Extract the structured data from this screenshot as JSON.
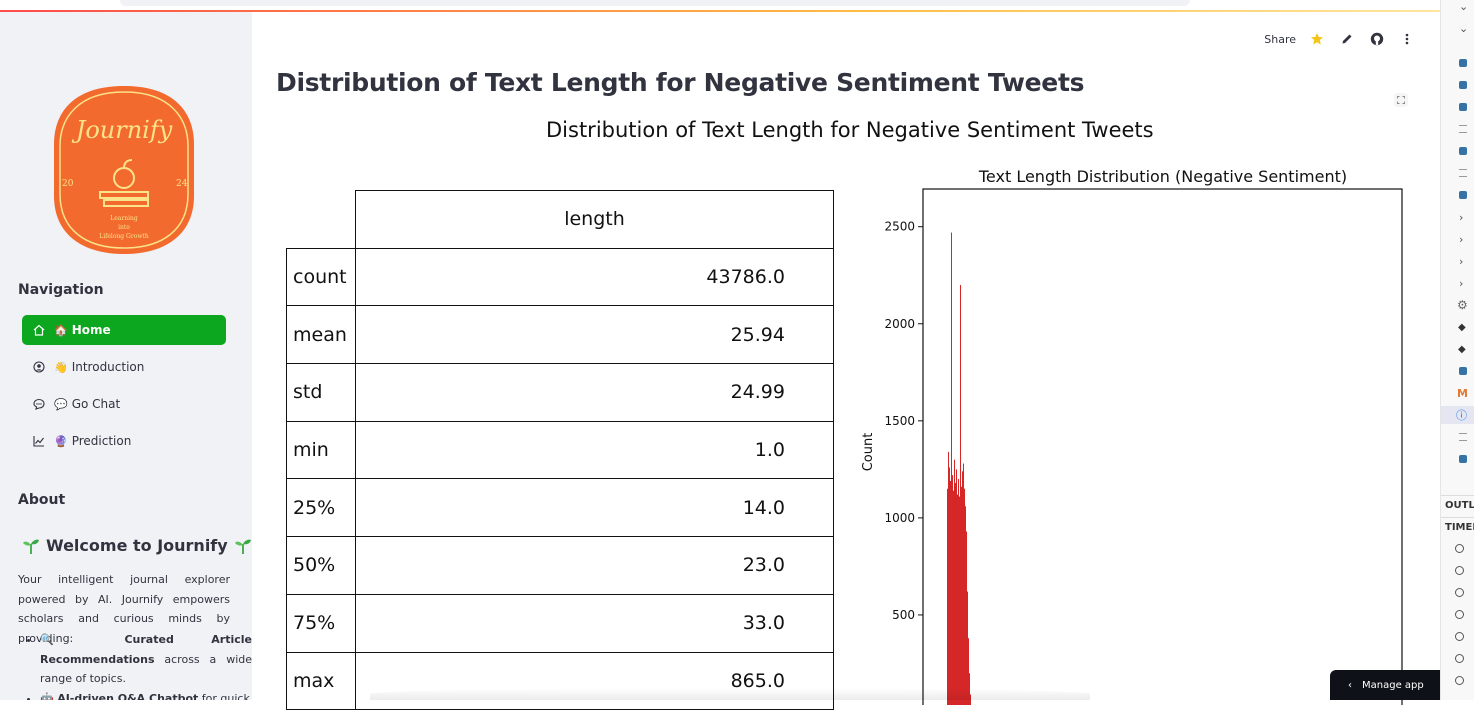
{
  "sidebar": {
    "logo": {
      "name": "Journify",
      "year_left": "20",
      "year_right": "24",
      "tagline": [
        "Learning",
        "into",
        "Lifelong Growth"
      ]
    },
    "navigation_heading": "Navigation",
    "nav_items": [
      {
        "icon": "home-icon",
        "emoji": "🏠",
        "label": "Home",
        "active": true
      },
      {
        "icon": "user-circle-icon",
        "emoji": "👋",
        "label": "Introduction",
        "active": false
      },
      {
        "icon": "chat-icon",
        "emoji": "💬",
        "label": "Go Chat",
        "active": false
      },
      {
        "icon": "chart-icon",
        "emoji": "🔮",
        "label": "Prediction",
        "active": false
      }
    ],
    "about_heading": "About",
    "welcome_title": "Welcome to Journify",
    "about_text": "Your intelligent journal explorer powered by AI. Journify empowers scholars and curious minds by providing:",
    "features": [
      {
        "emoji": "🔍",
        "bold": "Curated Article Recommendations",
        "rest": " across a wide range of topics."
      },
      {
        "emoji": "🤖",
        "bold": "AI-driven Q&A Chatbot",
        "rest": " for quick"
      }
    ]
  },
  "toolbar": {
    "share_label": "Share",
    "icons": [
      "star-icon",
      "edit-icon",
      "github-icon",
      "more-icon"
    ]
  },
  "main": {
    "title": "Distribution of Text Length for Negative Sentiment Tweets",
    "figure_title": "Distribution of Text Length for Negative Sentiment Tweets"
  },
  "chart_data": [
    {
      "type": "table",
      "columns": [
        "length"
      ],
      "rows": [
        {
          "label": "count",
          "value": "43786.0"
        },
        {
          "label": "mean",
          "value": "25.94"
        },
        {
          "label": "std",
          "value": "24.99"
        },
        {
          "label": "min",
          "value": "1.0"
        },
        {
          "label": "25%",
          "value": "14.0"
        },
        {
          "label": "50%",
          "value": "23.0"
        },
        {
          "label": "75%",
          "value": "33.0"
        },
        {
          "label": "max",
          "value": "865.0"
        }
      ]
    },
    {
      "type": "bar",
      "title": "Text Length Distribution (Negative Sentiment)",
      "ylabel": "Count",
      "yticks": [
        500,
        1000,
        1500,
        2000,
        2500
      ],
      "ylim": [
        0,
        2600
      ],
      "color": "#d62728",
      "series": [
        {
          "values": [
            1150,
            1340,
            1260,
            1190,
            2470,
            1220,
            1140,
            1300,
            1180,
            1250,
            1120,
            1200,
            1110,
            2200,
            1160,
            1240,
            1280,
            1150,
            1060,
            930,
            620,
            380,
            200,
            90
          ]
        }
      ]
    }
  ],
  "ide": {
    "sections": [
      "OUTLINE",
      "TIMELINE"
    ]
  },
  "manage_app": "Manage app",
  "colors": {
    "nav_active": "#0da61f",
    "logo_bg": "#f26a2e",
    "logo_fg": "#fbe38a",
    "bar": "#d62728"
  }
}
